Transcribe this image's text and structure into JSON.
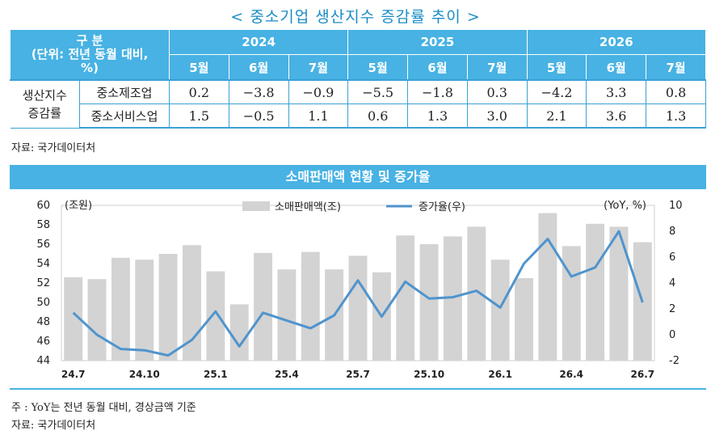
{
  "title": "< 중소기업 생산지수 증감률 추이 >",
  "table": {
    "header_label": "구 분 (단위: 전년 동월 대비, %)",
    "header_label_line1": "구 분",
    "header_label_line2": "(단위: 전년 동월 대비,",
    "header_label_line3": "%)",
    "years": [
      "2024",
      "2025",
      "2026"
    ],
    "months": [
      "5월",
      "6월",
      "7월",
      "5월",
      "6월",
      "7월",
      "5월",
      "6월",
      "7월"
    ],
    "row_group_line1": "생산지수",
    "row_group_line2": "증감률",
    "rows": [
      {
        "name": "중소제조업",
        "values": [
          "0.2",
          "−3.8",
          "−0.9",
          "−5.5",
          "−1.8",
          "0.3",
          "−4.2",
          "3.3",
          "0.8"
        ]
      },
      {
        "name": "중소서비스업",
        "values": [
          "1.5",
          "−0.5",
          "1.1",
          "0.6",
          "1.3",
          "3.0",
          "2.1",
          "3.6",
          "1.3"
        ]
      }
    ]
  },
  "source1": "자료: 국가데이터처",
  "chart_title": "소매판매액 현황 및 증가율",
  "note": "주 : YoY는 전년 동월 대비, 경상금액 기준",
  "source2": "자료: 국가데이터처",
  "colors": {
    "accent": "#47b2e3",
    "bar": "#d3d3d3",
    "line": "#4f94cd"
  },
  "chart_data": {
    "type": "bar",
    "x": [
      "24.7",
      "24.8",
      "24.9",
      "24.10",
      "24.11",
      "24.12",
      "25.1",
      "25.2",
      "25.3",
      "25.4",
      "25.5",
      "25.6",
      "25.7",
      "25.8",
      "25.9",
      "25.10",
      "25.11",
      "25.12",
      "26.1",
      "26.2",
      "26.3",
      "26.4",
      "26.5",
      "26.6",
      "26.7"
    ],
    "x_tick_labels": [
      "24.7",
      "24.10",
      "25.1",
      "25.4",
      "25.7",
      "25.10",
      "26.1",
      "26.4",
      "26.7"
    ],
    "series": [
      {
        "name": "소매판매액(조)",
        "type": "bar",
        "axis": "left",
        "values": [
          52.6,
          52.4,
          54.6,
          54.4,
          55.0,
          55.9,
          53.2,
          49.8,
          55.1,
          53.4,
          55.2,
          53.4,
          54.8,
          53.1,
          56.9,
          56.0,
          56.8,
          57.8,
          54.4,
          52.5,
          59.2,
          55.8,
          58.1,
          57.8,
          56.2
        ]
      },
      {
        "name": "증가율(우)",
        "type": "line",
        "axis": "right",
        "values": [
          1.7,
          0.0,
          -1.1,
          -1.2,
          -1.6,
          -0.4,
          1.8,
          -0.9,
          1.7,
          1.1,
          0.5,
          1.5,
          4.2,
          1.4,
          4.1,
          2.8,
          2.9,
          3.4,
          2.1,
          5.5,
          7.4,
          4.5,
          5.2,
          8.0,
          2.5
        ]
      }
    ],
    "ylabel_left": "(조원)",
    "ylabel_right": "(YoY, %)",
    "ylim_left": [
      44,
      60
    ],
    "yticks_left": [
      "60",
      "58",
      "56",
      "54",
      "52",
      "50",
      "48",
      "46",
      "44"
    ],
    "ylim_right": [
      -2,
      10
    ],
    "yticks_right": [
      "10",
      "8",
      "6",
      "4",
      "2",
      "0",
      "-2"
    ],
    "grid": false,
    "legend": "top-center"
  }
}
